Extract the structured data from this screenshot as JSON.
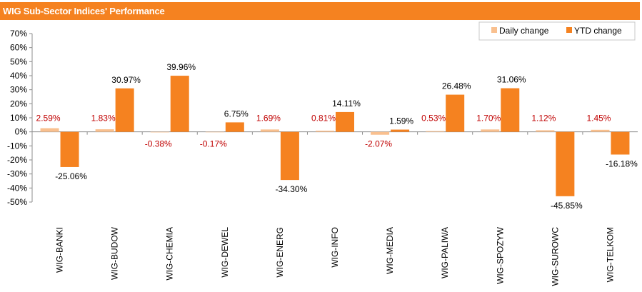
{
  "header": {
    "title": "WIG Sub-Sector Indices' Performance"
  },
  "colors": {
    "header": "#f58220",
    "daily": "#f9c08f",
    "ytd": "#f58220",
    "daily_label": "#c00000",
    "ytd_label": "#000000"
  },
  "chart_data": {
    "type": "bar",
    "categories": [
      "WIG-BANKI",
      "WIG-BUDOW",
      "WIG-CHEMIA",
      "WIG-DEWEL",
      "WIG-ENERG",
      "WIG-INFO",
      "WIG-MEDIA",
      "WIG-PALIWA",
      "WIG-SPOZYW",
      "WIG-SUROWC",
      "WIG-TELKOM"
    ],
    "series": [
      {
        "name": "Daily change",
        "values": [
          2.59,
          1.83,
          -0.38,
          -0.17,
          1.69,
          0.81,
          -2.07,
          0.53,
          1.7,
          1.12,
          1.45
        ],
        "labels": [
          "2.59%",
          "1.83%",
          "-0.38%",
          "-0.17%",
          "1.69%",
          "0.81%",
          "-2.07%",
          "0.53%",
          "1.70%",
          "1.12%",
          "1.45%"
        ]
      },
      {
        "name": "YTD change",
        "values": [
          -25.06,
          30.97,
          39.96,
          6.75,
          -34.3,
          14.11,
          1.59,
          26.48,
          31.06,
          -45.85,
          -16.18
        ],
        "labels": [
          "-25.06%",
          "30.97%",
          "39.96%",
          "6.75%",
          "-34.30%",
          "14.11%",
          "1.59%",
          "26.48%",
          "31.06%",
          "-45.85%",
          "-16.18%"
        ]
      }
    ],
    "y_ticks": [
      70,
      60,
      50,
      40,
      30,
      20,
      10,
      0,
      -10,
      -20,
      -30,
      -40,
      -50
    ],
    "y_tick_labels": [
      "70%",
      "60%",
      "50%",
      "40%",
      "30%",
      "20%",
      "10%",
      "0%",
      "-10%",
      "-20%",
      "-30%",
      "-40%",
      "-50%"
    ],
    "ylim": [
      -50,
      70
    ],
    "grid": false,
    "legend_position": "top-right"
  }
}
